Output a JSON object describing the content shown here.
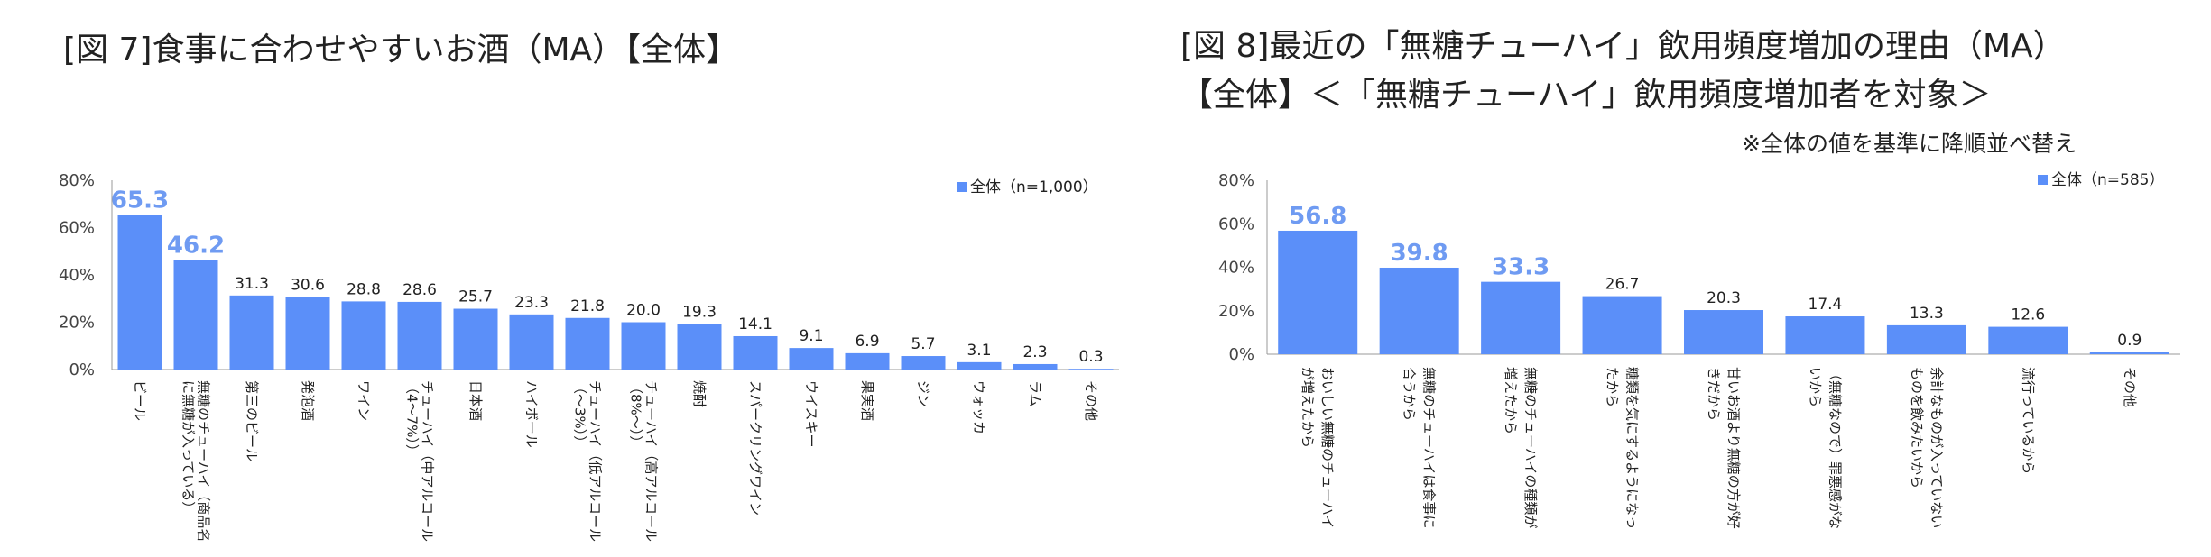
{
  "page": {
    "chart1_title": "[図 7]食事に合わせやすいお酒（MA）【全体】",
    "chart2_title_line1": "[図 8]最近の「無糖チューハイ」飲用頻度増加の理由（MA）",
    "chart2_title_line2": "【全体】＜「無糖チューハイ」飲用頻度増加者を対象＞",
    "chart2_note": "※全体の値を基準に降順並べ替え"
  },
  "colors": {
    "bar": "#5B8FF9",
    "highlight_label": "#6F9BF2",
    "axis": "#999999"
  },
  "chart_data": [
    {
      "type": "bar",
      "title": "[図 7]食事に合わせやすいお酒（MA）【全体】",
      "series": [
        {
          "name": "全体（n=1,000）",
          "values": [
            65.3,
            46.2,
            31.3,
            30.6,
            28.8,
            28.6,
            25.7,
            23.3,
            21.8,
            20.0,
            19.3,
            14.1,
            9.1,
            6.9,
            5.7,
            3.1,
            2.3,
            0.3
          ]
        }
      ],
      "value_labels": [
        "65.3",
        "46.2",
        "31.3",
        "30.6",
        "28.8",
        "28.6",
        "25.7",
        "23.3",
        "21.8",
        "20.0",
        "19.3",
        "14.1",
        "9.1",
        "6.9",
        "5.7",
        "3.1",
        "2.3",
        "0.3"
      ],
      "categories": [
        [
          "ビール"
        ],
        [
          "無糖のチューハイ（商品名",
          "に無糖が入っている）"
        ],
        [
          "第三のビール"
        ],
        [
          "発泡酒"
        ],
        [
          "ワイン"
        ],
        [
          "チューハイ（中アルコール",
          "（4～7%））"
        ],
        [
          "日本酒"
        ],
        [
          "ハイボール"
        ],
        [
          "チューハイ（低アルコール",
          "（～3%））"
        ],
        [
          "チューハイ（高アルコール",
          "（8%～））"
        ],
        [
          "焼酎"
        ],
        [
          "スパークリングワイン"
        ],
        [
          "ウイスキー"
        ],
        [
          "果実酒"
        ],
        [
          "ジン"
        ],
        [
          "ウォッカ"
        ],
        [
          "ラム"
        ],
        [
          "その他"
        ]
      ],
      "highlight_top": 2,
      "yticks": [
        "0%",
        "20%",
        "40%",
        "60%",
        "80%"
      ],
      "ylim": [
        0,
        80
      ],
      "legend_position": "top-right"
    },
    {
      "type": "bar",
      "title": "[図 8]最近の「無糖チューハイ」飲用頻度増加の理由（MA）【全体】＜「無糖チューハイ」飲用頻度増加者を対象＞",
      "series": [
        {
          "name": "全体（n=585）",
          "values": [
            56.8,
            39.8,
            33.3,
            26.7,
            20.3,
            17.4,
            13.3,
            12.6,
            0.9
          ]
        }
      ],
      "value_labels": [
        "56.8",
        "39.8",
        "33.3",
        "26.7",
        "20.3",
        "17.4",
        "13.3",
        "12.6",
        "0.9"
      ],
      "categories": [
        [
          "おいしい無糖のチューハイ",
          "が増えたから"
        ],
        [
          "無糖のチューハイは食事に",
          "合うから"
        ],
        [
          "無糖のチューハイの種類が",
          "増えたから"
        ],
        [
          "糖類を気にするようになっ",
          "たから"
        ],
        [
          "甘いお酒より無糖の方が好",
          "きだから"
        ],
        [
          "（無糖なので）罪悪感がな",
          "いから"
        ],
        [
          "余計なものが入っていない",
          "ものを飲みたいから"
        ],
        [
          "流行っているから"
        ],
        [
          "その他"
        ]
      ],
      "highlight_top": 3,
      "yticks": [
        "0%",
        "20%",
        "40%",
        "60%",
        "80%"
      ],
      "ylim": [
        0,
        80
      ],
      "legend_position": "top-right"
    }
  ]
}
